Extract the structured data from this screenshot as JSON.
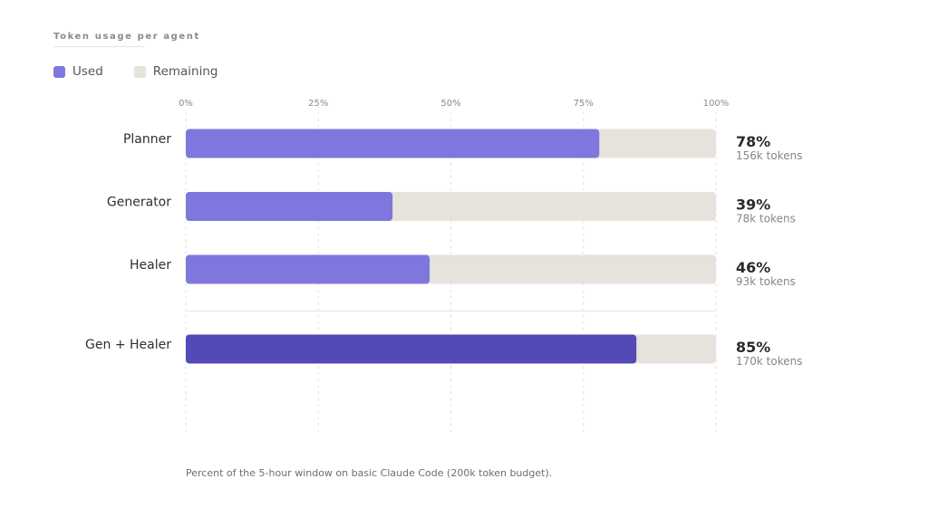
{
  "header": {
    "eyebrow": "Token usage per agent"
  },
  "legend": {
    "items": [
      {
        "label": "Used",
        "color": "#7f77dd"
      },
      {
        "label": "Remaining",
        "color": "#e6e3dc"
      }
    ]
  },
  "chart_data": {
    "type": "bar",
    "orientation": "horizontal",
    "stacked": true,
    "title": "Token usage per agent",
    "xlim": [
      0,
      100
    ],
    "x_ticks": [
      "0%",
      "25%",
      "50%",
      "75%",
      "100%"
    ],
    "grid": "vertical dashed",
    "legend_position": "top-left",
    "categories": [
      "Planner",
      "Generator",
      "Healer",
      "Gen + Healer"
    ],
    "series": [
      {
        "name": "Used",
        "values": [
          78,
          39,
          46,
          85
        ],
        "colors": [
          "#7f77dd",
          "#7f77dd",
          "#7f77dd",
          "#534ab7"
        ]
      },
      {
        "name": "Remaining",
        "values": [
          22,
          61,
          54,
          15
        ],
        "color": "#e6e3dc"
      }
    ],
    "value_labels": [
      "78%",
      "39%",
      "46%",
      "85%"
    ],
    "token_labels": [
      "156k tokens",
      "78k tokens",
      "93k tokens",
      "170k tokens"
    ],
    "caption": "Percent of the 5-hour window on basic Claude Code (200k token budget)."
  }
}
